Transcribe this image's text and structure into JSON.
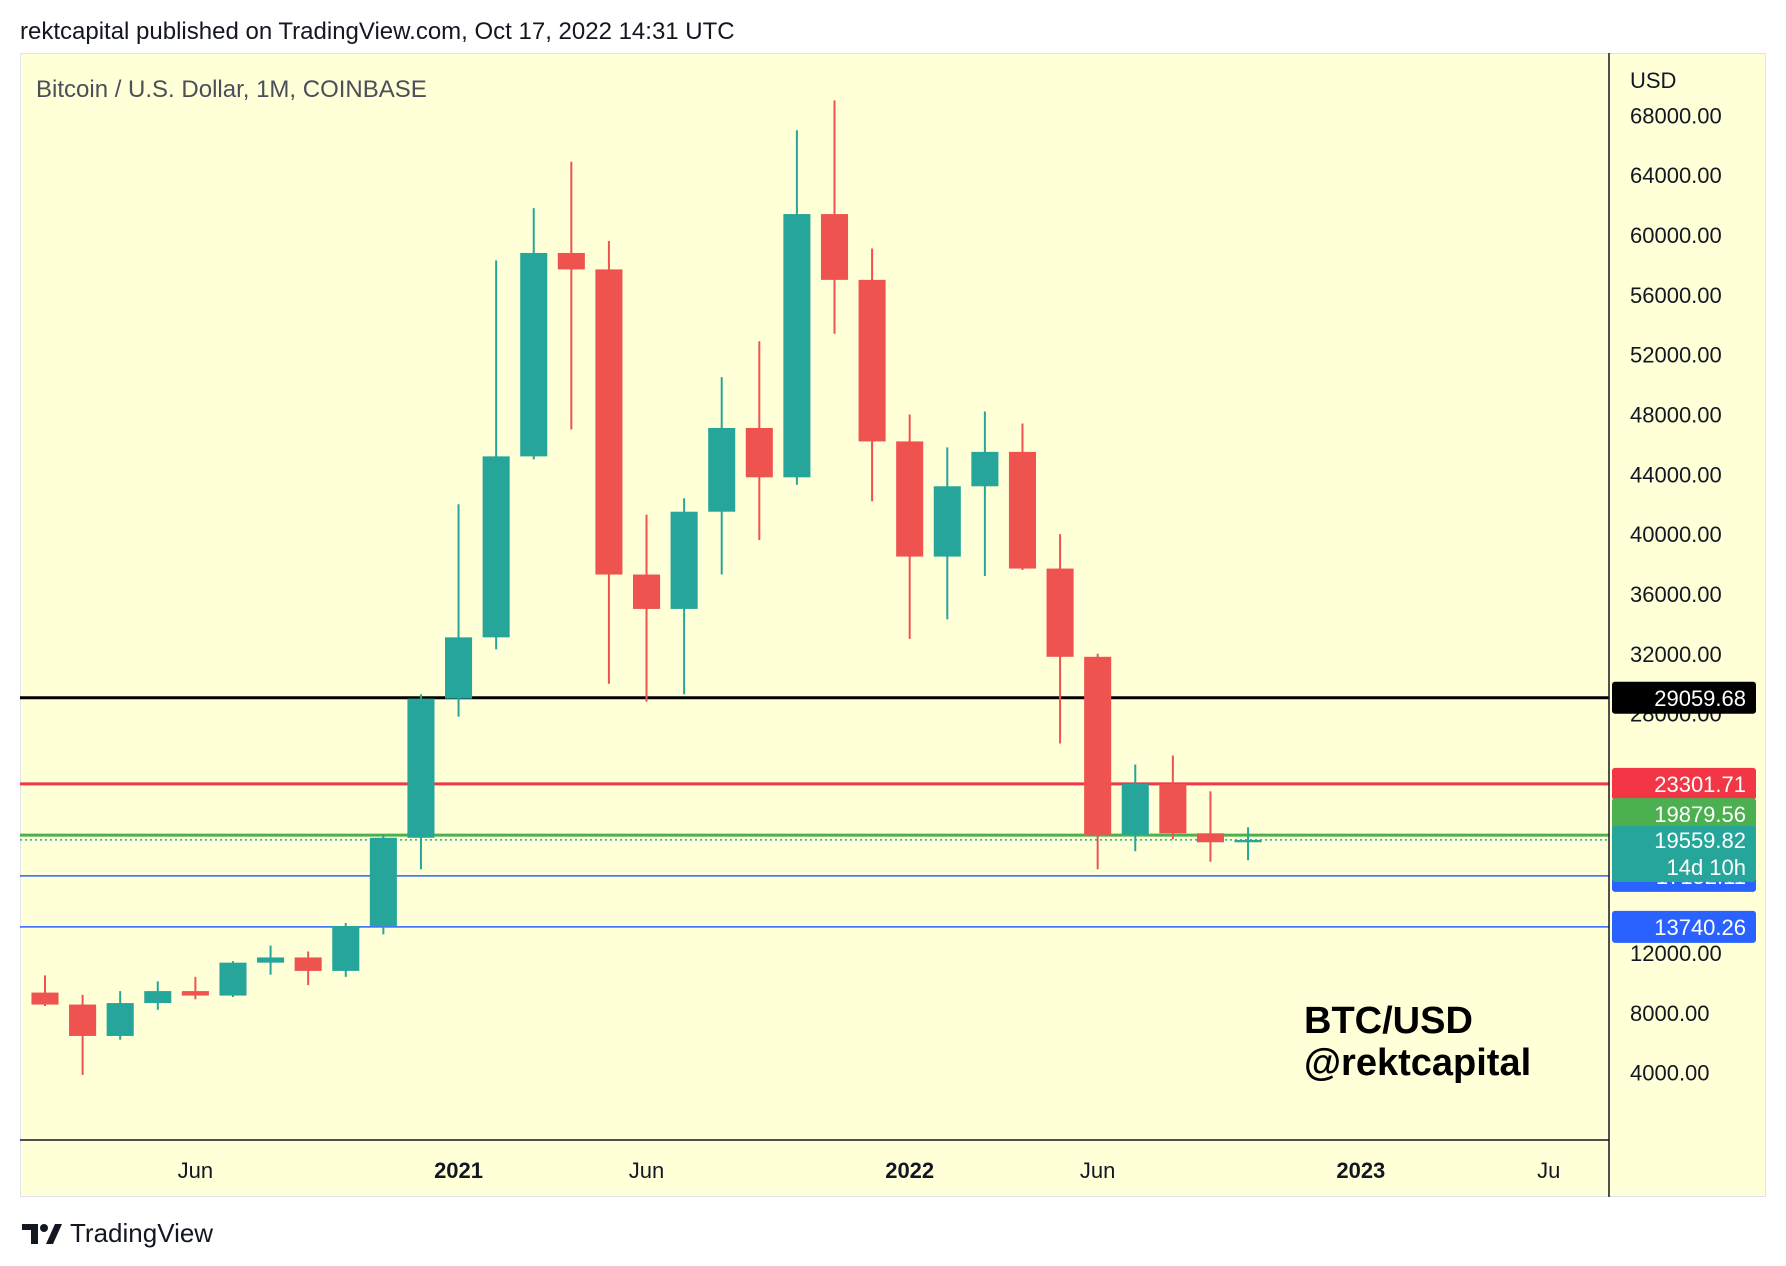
{
  "header": {
    "published_text": "rektcapital published on TradingView.com, Oct 17, 2022 14:31 UTC"
  },
  "footer": {
    "brand": "TradingView"
  },
  "chart_data": {
    "type": "candlestick",
    "title": "Bitcoin / U.S. Dollar, 1M, COINBASE",
    "watermark": [
      "BTC/USD",
      "@rektcapital"
    ],
    "currency_label": "USD",
    "ylim": [
      1500,
      71500
    ],
    "yticks": [
      4000,
      8000,
      12000,
      28000,
      32000,
      36000,
      40000,
      44000,
      48000,
      52000,
      56000,
      60000,
      64000,
      68000
    ],
    "ytick_labels": [
      "4000.00",
      "8000.00",
      "12000.00",
      "28000.00",
      "32000.00",
      "36000.00",
      "40000.00",
      "44000.00",
      "48000.00",
      "52000.00",
      "56000.00",
      "60000.00",
      "64000.00",
      "68000.00"
    ],
    "xlim": [
      "2020-02",
      "2023-08"
    ],
    "xticks": [
      {
        "label": "Jun",
        "month": "2020-06",
        "bold": false
      },
      {
        "label": "2021",
        "month": "2021-01",
        "bold": true
      },
      {
        "label": "Jun",
        "month": "2021-06",
        "bold": false
      },
      {
        "label": "2022",
        "month": "2022-01",
        "bold": true
      },
      {
        "label": "Jun",
        "month": "2022-06",
        "bold": false
      },
      {
        "label": "2023",
        "month": "2023-01",
        "bold": true
      },
      {
        "label": "Ju",
        "month": "2023-06",
        "bold": false
      }
    ],
    "candles": [
      {
        "date": "2020-02",
        "open": 9350,
        "high": 10500,
        "low": 8450,
        "close": 8550
      },
      {
        "date": "2020-03",
        "open": 8550,
        "high": 9200,
        "low": 3850,
        "close": 6450
      },
      {
        "date": "2020-04",
        "open": 6450,
        "high": 9450,
        "low": 6200,
        "close": 8650
      },
      {
        "date": "2020-05",
        "open": 8650,
        "high": 10100,
        "low": 8200,
        "close": 9450
      },
      {
        "date": "2020-06",
        "open": 9450,
        "high": 10400,
        "low": 8900,
        "close": 9150
      },
      {
        "date": "2020-07",
        "open": 9150,
        "high": 11450,
        "low": 9050,
        "close": 11350
      },
      {
        "date": "2020-08",
        "open": 11350,
        "high": 12500,
        "low": 10550,
        "close": 11700
      },
      {
        "date": "2020-09",
        "open": 11700,
        "high": 12100,
        "low": 9850,
        "close": 10800
      },
      {
        "date": "2020-10",
        "open": 10800,
        "high": 14000,
        "low": 10400,
        "close": 13800
      },
      {
        "date": "2020-11",
        "open": 13800,
        "high": 19900,
        "low": 13250,
        "close": 19700
      },
      {
        "date": "2020-12",
        "open": 19700,
        "high": 29300,
        "low": 17600,
        "close": 29000
      },
      {
        "date": "2021-01",
        "open": 29000,
        "high": 42000,
        "low": 27800,
        "close": 33100
      },
      {
        "date": "2021-02",
        "open": 33100,
        "high": 58300,
        "low": 32300,
        "close": 45200
      },
      {
        "date": "2021-03",
        "open": 45200,
        "high": 61800,
        "low": 45000,
        "close": 58800
      },
      {
        "date": "2021-04",
        "open": 58800,
        "high": 64900,
        "low": 47000,
        "close": 57700
      },
      {
        "date": "2021-05",
        "open": 57700,
        "high": 59600,
        "low": 30000,
        "close": 37300
      },
      {
        "date": "2021-06",
        "open": 37300,
        "high": 41300,
        "low": 28800,
        "close": 35000
      },
      {
        "date": "2021-07",
        "open": 35000,
        "high": 42400,
        "low": 29300,
        "close": 41500
      },
      {
        "date": "2021-08",
        "open": 41500,
        "high": 50500,
        "low": 37300,
        "close": 47100
      },
      {
        "date": "2021-09",
        "open": 47100,
        "high": 52900,
        "low": 39600,
        "close": 43800
      },
      {
        "date": "2021-10",
        "open": 43800,
        "high": 67000,
        "low": 43300,
        "close": 61400
      },
      {
        "date": "2021-11",
        "open": 61400,
        "high": 69000,
        "low": 53400,
        "close": 57000
      },
      {
        "date": "2021-12",
        "open": 57000,
        "high": 59100,
        "low": 42200,
        "close": 46200
      },
      {
        "date": "2022-01",
        "open": 46200,
        "high": 48000,
        "low": 33000,
        "close": 38500
      },
      {
        "date": "2022-02",
        "open": 38500,
        "high": 45800,
        "low": 34300,
        "close": 43200
      },
      {
        "date": "2022-03",
        "open": 43200,
        "high": 48200,
        "low": 37200,
        "close": 45500
      },
      {
        "date": "2022-04",
        "open": 45500,
        "high": 47400,
        "low": 37600,
        "close": 37700
      },
      {
        "date": "2022-05",
        "open": 37700,
        "high": 40000,
        "low": 26000,
        "close": 31800
      },
      {
        "date": "2022-06",
        "open": 31800,
        "high": 32000,
        "low": 17600,
        "close": 19900
      },
      {
        "date": "2022-07",
        "open": 19900,
        "high": 24600,
        "low": 18800,
        "close": 23300
      },
      {
        "date": "2022-08",
        "open": 23300,
        "high": 25200,
        "low": 19600,
        "close": 20000
      },
      {
        "date": "2022-09",
        "open": 20000,
        "high": 22800,
        "low": 18100,
        "close": 19400
      },
      {
        "date": "2022-10",
        "open": 19400,
        "high": 20400,
        "low": 18200,
        "close": 19560
      }
    ],
    "horizontal_levels": [
      {
        "value": 29059.68,
        "label": "29059.68",
        "line_color": "#000000",
        "badge_color": "#000000"
      },
      {
        "value": 23301.71,
        "label": "23301.71",
        "line_color": "#f23645",
        "badge_color": "#f23645"
      },
      {
        "value": 19879.56,
        "label": "19879.56",
        "line_color": "#4caf50",
        "badge_color": "#4caf50"
      },
      {
        "value": 17152.11,
        "label": "17152.11",
        "line_color": "#2962ff",
        "badge_color": "#2962ff"
      },
      {
        "value": 13740.26,
        "label": "13740.26",
        "line_color": "#2962ff",
        "badge_color": "#2962ff"
      }
    ],
    "last_price": {
      "value": 19559.82,
      "label": "19559.82",
      "countdown": "14d 10h",
      "color": "#26a69a"
    },
    "colors": {
      "up": "#26a69a",
      "down": "#ef5350",
      "background": "#ffffd8",
      "axis_text": "#131722"
    }
  }
}
